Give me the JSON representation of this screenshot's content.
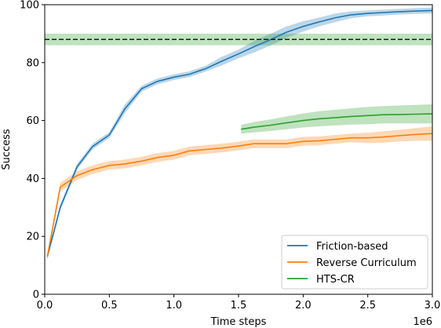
{
  "chart_data": {
    "type": "line",
    "xlabel": "Time steps",
    "ylabel": "Success",
    "x_offset_label": "1e6",
    "xlim": [
      0,
      3.0
    ],
    "ylim": [
      0,
      100
    ],
    "x_unit_multiplier": 1000000,
    "x_ticks": [
      0.0,
      0.5,
      1.0,
      1.5,
      2.0,
      2.5,
      3.0
    ],
    "x_tick_labels": [
      "0.0",
      "0.5",
      "1.0",
      "1.5",
      "2.0",
      "2.5",
      "3.0"
    ],
    "y_ticks": [
      0,
      20,
      40,
      60,
      80,
      100
    ],
    "y_tick_labels": [
      "0",
      "20",
      "40",
      "60",
      "80",
      "100"
    ],
    "grid": false,
    "legend_position": "lower-right",
    "series": [
      {
        "name": "Friction-based",
        "color": "#1f77b4",
        "x": [
          0.02,
          0.12,
          0.25,
          0.37,
          0.5,
          0.62,
          0.75,
          0.87,
          1.0,
          1.12,
          1.25,
          1.37,
          1.5,
          1.62,
          1.75,
          1.87,
          2.0,
          2.12,
          2.25,
          2.37,
          2.5,
          2.62,
          2.75,
          2.87,
          3.0
        ],
        "y": [
          13,
          30,
          44,
          51,
          55,
          64,
          71,
          73.5,
          75,
          76,
          78,
          80.5,
          83,
          85.5,
          88,
          90.5,
          92.5,
          94,
          95.5,
          96.5,
          97,
          97.3,
          97.6,
          97.8,
          98
        ],
        "band": [
          1,
          1,
          1,
          1,
          1,
          1.5,
          1,
          1,
          1,
          1,
          1,
          1.5,
          1.5,
          2,
          2,
          2,
          1.8,
          1.5,
          1.5,
          1.2,
          1,
          1,
          1,
          1,
          1
        ]
      },
      {
        "name": "Reverse Curriculum",
        "color": "#ff7f0e",
        "x": [
          0.02,
          0.12,
          0.25,
          0.37,
          0.5,
          0.62,
          0.75,
          0.87,
          1.0,
          1.12,
          1.25,
          1.37,
          1.5,
          1.62,
          1.75,
          1.87,
          2.0,
          2.12,
          2.25,
          2.37,
          2.5,
          2.62,
          2.75,
          2.87,
          3.0
        ],
        "y": [
          13,
          37,
          41,
          43,
          44.5,
          45,
          46,
          47.2,
          48,
          49.5,
          50,
          50.5,
          51.2,
          52,
          52,
          52,
          52.8,
          53,
          53.5,
          54,
          54,
          54.3,
          54.8,
          55.2,
          55.5
        ],
        "band": [
          1,
          1.5,
          1.5,
          1.5,
          1.5,
          1.5,
          1.5,
          1.5,
          1.5,
          1.5,
          1.5,
          1.5,
          1.5,
          1.5,
          1.5,
          1.5,
          1.5,
          1.5,
          1.5,
          1.5,
          1.8,
          2,
          2,
          2.2,
          2.5
        ]
      },
      {
        "name": "HTS-CR",
        "color": "#2ca02c",
        "x": [
          1.52,
          1.62,
          1.75,
          1.87,
          2.0,
          2.12,
          2.25,
          2.37,
          2.5,
          2.62,
          2.75,
          2.87,
          3.0
        ],
        "y": [
          57,
          57.7,
          58.4,
          59.2,
          60,
          60.6,
          61,
          61.4,
          61.7,
          62,
          62.1,
          62.2,
          62.3
        ],
        "band": [
          1.5,
          1.8,
          2,
          2.2,
          2.4,
          2.6,
          2.7,
          2.8,
          3,
          3,
          3.1,
          3.2,
          3.3
        ],
        "baseline": {
          "y": 88,
          "band": 2,
          "style": "dashed"
        }
      }
    ]
  }
}
